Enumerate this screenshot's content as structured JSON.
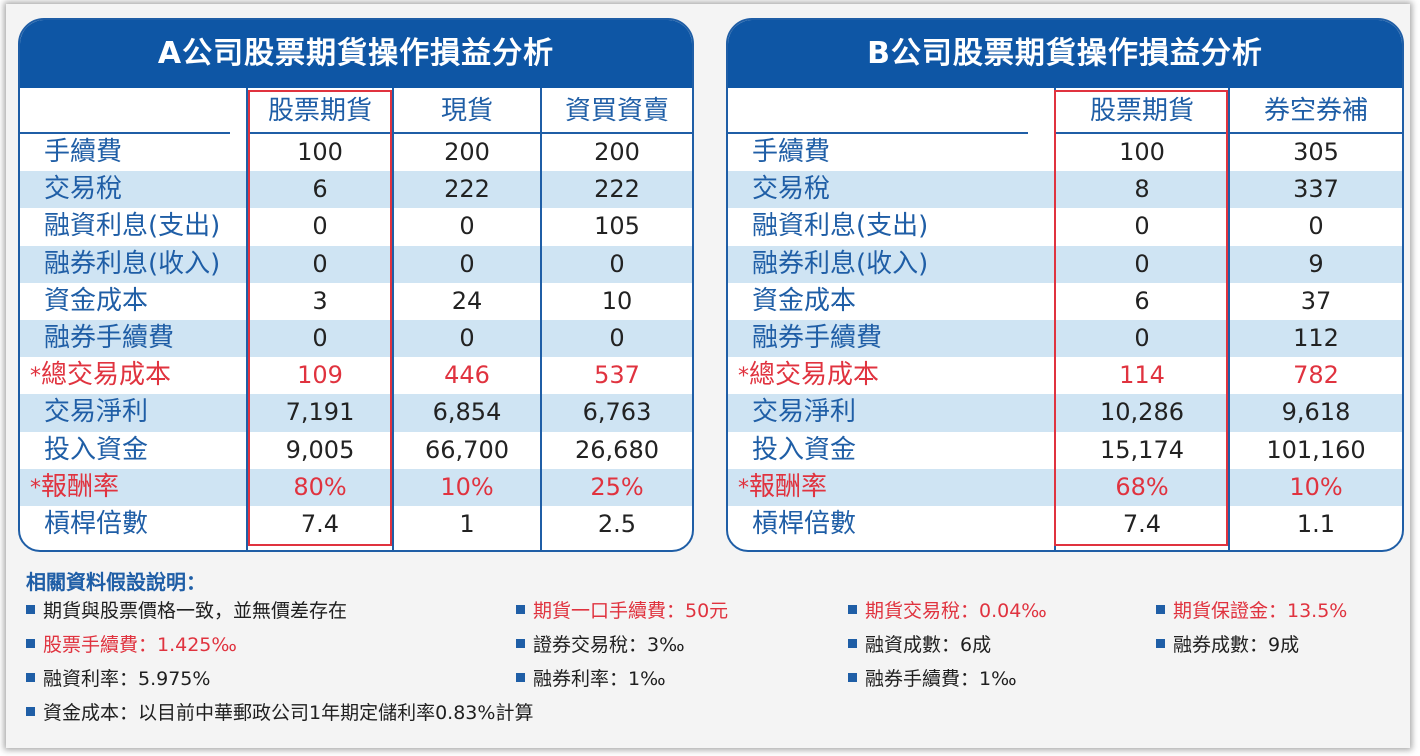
{
  "panelA": {
    "title": "A公司股票期貨操作損益分析",
    "columns": [
      "股票期貨",
      "現貨",
      "資買資賣"
    ],
    "rows": [
      {
        "label": "手續費",
        "values": [
          "100",
          "200",
          "200"
        ]
      },
      {
        "label": "交易稅",
        "values": [
          "6",
          "222",
          "222"
        ]
      },
      {
        "label": "融資利息(支出)",
        "values": [
          "0",
          "0",
          "105"
        ]
      },
      {
        "label": "融券利息(收入)",
        "values": [
          "0",
          "0",
          "0"
        ]
      },
      {
        "label": "資金成本",
        "values": [
          "3",
          "24",
          "10"
        ]
      },
      {
        "label": "融券手續費",
        "values": [
          "0",
          "0",
          "0"
        ]
      },
      {
        "label": "總交易成本",
        "star": "*",
        "values": [
          "109",
          "446",
          "537"
        ]
      },
      {
        "label": "交易淨利",
        "values": [
          "7,191",
          "6,854",
          "6,763"
        ]
      },
      {
        "label": "投入資金",
        "values": [
          "9,005",
          "66,700",
          "26,680"
        ]
      },
      {
        "label": "報酬率",
        "star": "*",
        "values": [
          "80%",
          "10%",
          "25%"
        ]
      },
      {
        "label": "槓桿倍數",
        "values": [
          "7.4",
          "1",
          "2.5"
        ]
      }
    ]
  },
  "panelB": {
    "title": "B公司股票期貨操作損益分析",
    "columns": [
      "股票期貨",
      "券空券補"
    ],
    "rows": [
      {
        "label": "手續費",
        "values": [
          "100",
          "305"
        ]
      },
      {
        "label": "交易稅",
        "values": [
          "8",
          "337"
        ]
      },
      {
        "label": "融資利息(支出)",
        "values": [
          "0",
          "0"
        ]
      },
      {
        "label": "融券利息(收入)",
        "values": [
          "0",
          "9"
        ]
      },
      {
        "label": "資金成本",
        "values": [
          "6",
          "37"
        ]
      },
      {
        "label": "融券手續費",
        "values": [
          "0",
          "112"
        ]
      },
      {
        "label": "總交易成本",
        "star": "*",
        "values": [
          "114",
          "782"
        ]
      },
      {
        "label": "交易淨利",
        "values": [
          "10,286",
          "9,618"
        ]
      },
      {
        "label": "投入資金",
        "values": [
          "15,174",
          "101,160"
        ]
      },
      {
        "label": "報酬率",
        "star": "*",
        "values": [
          "68%",
          "10%"
        ]
      },
      {
        "label": "槓桿倍數",
        "values": [
          "7.4",
          "1.1"
        ]
      }
    ]
  },
  "notes": {
    "title": "相關資料假設說明：",
    "items": [
      "期貨與股票價格一致，並無價差存在",
      "期貨一口手續費：50元",
      "期貨交易稅：0.04‰",
      "期貨保證金：13.5%",
      "股票手續費：1.425‰",
      "證券交易稅：3‰",
      "融資成數：6成",
      "融券成數：9成",
      "融資利率：5.975%",
      "融券利率：1‰",
      "融券手續費：1‰",
      "資金成本：以目前中華郵政公司1年期定儲利率0.83%計算"
    ]
  },
  "colors": {
    "title_bar": "#0e56a5",
    "row_alt": "#cfe4f3",
    "text_blue": "#1f5ea6",
    "highlight_red": "#e0333f"
  }
}
